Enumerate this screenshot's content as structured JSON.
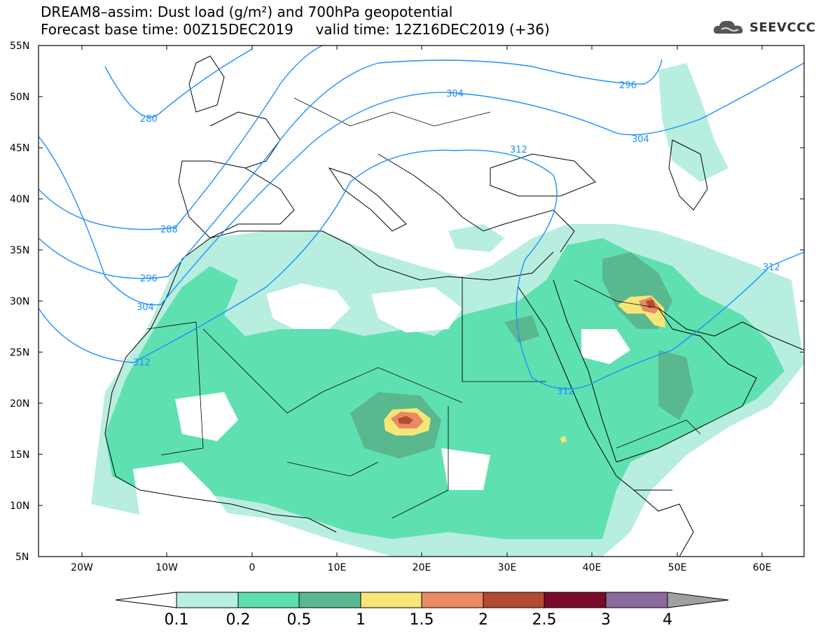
{
  "title": {
    "line1": "DREAM8–assim: Dust load (g/m²) and 700hPa geopotential",
    "line2": "Forecast base time: 00Z15DEC2019     valid time: 12Z16DEC2019 (+36)"
  },
  "logo": {
    "text": "SEEVCCC",
    "icon": "cloud-icon"
  },
  "axes": {
    "lat_labels": [
      "55N",
      "50N",
      "45N",
      "40N",
      "35N",
      "30N",
      "25N",
      "20N",
      "15N",
      "10N",
      "5N"
    ],
    "lon_labels": [
      "20W",
      "10W",
      "0",
      "10E",
      "20E",
      "30E",
      "40E",
      "50E",
      "60E"
    ]
  },
  "contours": {
    "labels": [
      "280",
      "288",
      "296",
      "304",
      "312",
      "296",
      "304",
      "312",
      "304",
      "312",
      "312"
    ]
  },
  "colorbar": {
    "ticks": [
      "0.1",
      "0.2",
      "0.5",
      "1",
      "1.5",
      "2",
      "2.5",
      "3",
      "4"
    ],
    "colors": [
      "#ffffff",
      "#b8eee0",
      "#5fe0b0",
      "#5ab88e",
      "#f6e678",
      "#e88a62",
      "#b24a34",
      "#7a0a2a",
      "#8c6a9c",
      "#a0a0a0"
    ]
  },
  "colors": {
    "contour": "#1e90ff",
    "dust_light": "#b8eee0",
    "dust_mid": "#5fe0b0",
    "dust_dark": "#5ab88e",
    "dust_yellow": "#f6e678",
    "dust_orange": "#e88a62",
    "dust_brown": "#b24a34",
    "dust_red": "#7a0a2a"
  }
}
